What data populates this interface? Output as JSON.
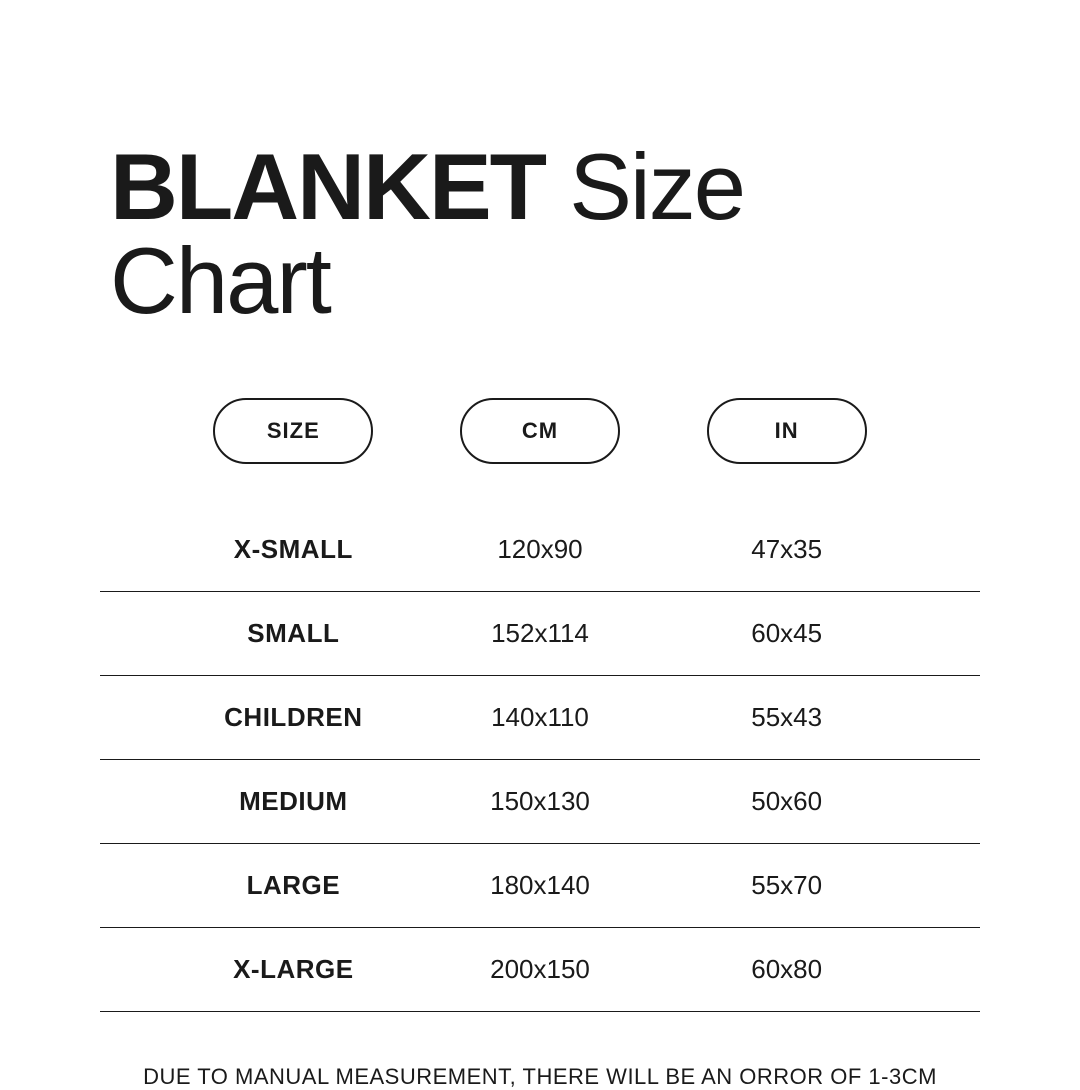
{
  "title": {
    "bold": "BLANKET",
    "light": " Size Chart"
  },
  "chart": {
    "type": "table",
    "columns": [
      "SIZE",
      "CM",
      "IN"
    ],
    "rows": [
      {
        "size": "X-SMALL",
        "cm": "120x90",
        "in": "47x35"
      },
      {
        "size": "SMALL",
        "cm": "152x114",
        "in": "60x45"
      },
      {
        "size": "CHILDREN",
        "cm": "140x110",
        "in": "55x43"
      },
      {
        "size": "MEDIUM",
        "cm": "150x130",
        "in": "50x60"
      },
      {
        "size": "LARGE",
        "cm": "180x140",
        "in": "55x70"
      },
      {
        "size": "X-LARGE",
        "cm": "200x150",
        "in": "60x80"
      }
    ],
    "border_color": "#1a1a1a",
    "text_color": "#1a1a1a",
    "background_color": "#ffffff",
    "title_fontsize": 94,
    "header_fontsize": 22,
    "cell_fontsize": 26,
    "footnote_fontsize": 22,
    "pill_border_radius": 999,
    "row_border_width": 1.5
  },
  "footnote": "DUE TO MANUAL MEASUREMENT, THERE WILL BE AN ORROR OF 1-3CM"
}
